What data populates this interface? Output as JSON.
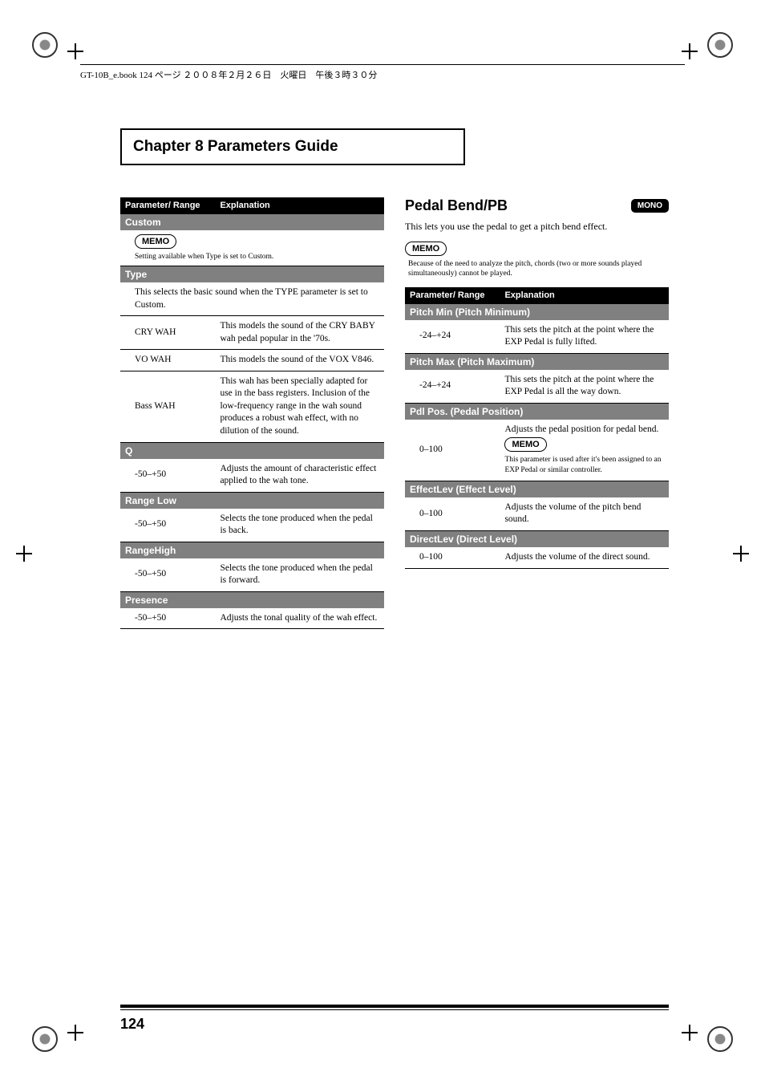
{
  "topline": "GT-10B_e.book 124 ページ ２００８年２月２６日　火曜日　午後３時３０分",
  "chapter_title": "Chapter 8 Parameters Guide",
  "header": {
    "param": "Parameter/\nRange",
    "expl": "Explanation"
  },
  "left": {
    "custom": {
      "label": "Custom",
      "memo": "MEMO",
      "memo_text": "Setting available when Type is set to Custom."
    },
    "type": {
      "label": "Type",
      "desc": "This selects the basic sound when the TYPE parameter is set to Custom.",
      "rows": [
        {
          "k": "CRY WAH",
          "v": "This models the sound of the CRY BABY wah pedal popular in the '70s."
        },
        {
          "k": "VO WAH",
          "v": "This models the sound of the VOX V846."
        },
        {
          "k": "Bass WAH",
          "v": "This wah has been specially adapted for use in the bass registers.\nInclusion of the low-frequency range in the wah sound produces a robust wah effect, with no dilution of the sound."
        }
      ]
    },
    "q": {
      "label": "Q",
      "rows": [
        {
          "k": "-50–+50",
          "v": "Adjusts the amount of characteristic effect applied to the wah tone."
        }
      ]
    },
    "rangelow": {
      "label": "Range Low",
      "rows": [
        {
          "k": "-50–+50",
          "v": "Selects the tone produced when the pedal is back."
        }
      ]
    },
    "rangehigh": {
      "label": "RangeHigh",
      "rows": [
        {
          "k": "-50–+50",
          "v": "Selects the tone produced when the pedal is forward."
        }
      ]
    },
    "presence": {
      "label": "Presence",
      "rows": [
        {
          "k": "-50–+50",
          "v": "Adjusts the tonal quality of the wah effect."
        }
      ]
    }
  },
  "right": {
    "title": "Pedal Bend/PB",
    "mono": "MONO",
    "intro": "This lets you use the pedal to get a pitch bend effect.",
    "memo": "MEMO",
    "memo_text": "Because of the need to analyze the pitch, chords (two or more sounds played simultaneously) cannot be played.",
    "sections": {
      "pitchmin": {
        "label": "Pitch Min (Pitch Minimum)",
        "rows": [
          {
            "k": "-24–+24",
            "v": "This sets the pitch at the point where the EXP Pedal is fully lifted."
          }
        ]
      },
      "pitchmax": {
        "label": "Pitch Max (Pitch Maximum)",
        "rows": [
          {
            "k": "-24–+24",
            "v": "This sets the pitch at the point where the EXP Pedal is all the way down."
          }
        ]
      },
      "pdlpos": {
        "label": "Pdl Pos. (Pedal Position)",
        "rows": [
          {
            "k": "0–100",
            "v_top": "Adjusts the pedal position for pedal bend.",
            "memo": "MEMO",
            "memo_text": "This parameter is used after it's been assigned to an EXP Pedal or similar controller."
          }
        ]
      },
      "effectlev": {
        "label": "EffectLev (Effect Level)",
        "rows": [
          {
            "k": "0–100",
            "v": "Adjusts the volume of the pitch bend sound."
          }
        ]
      },
      "directlev": {
        "label": "DirectLev (Direct Level)",
        "rows": [
          {
            "k": "0–100",
            "v": "Adjusts the volume of the direct sound."
          }
        ]
      }
    }
  },
  "pagenum": "124"
}
